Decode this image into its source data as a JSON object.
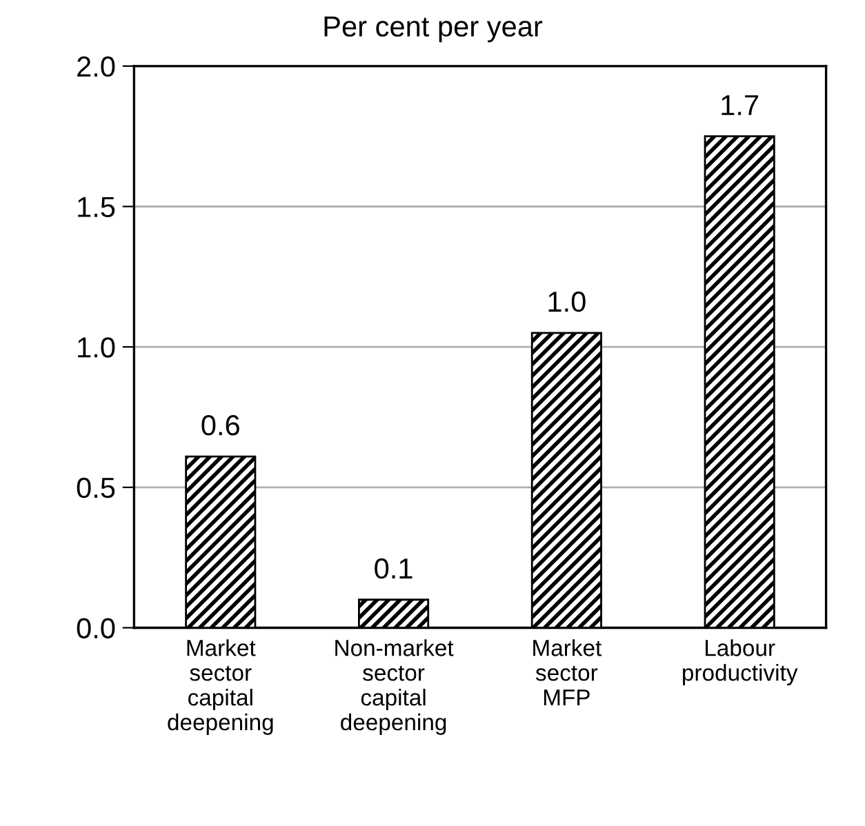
{
  "chart_data": {
    "type": "bar",
    "title": "Per cent per year",
    "categories": [
      "Market\nsector\ncapital\ndeepening",
      "Non-market\nsector\ncapital\ndeepening",
      "Market\nsector\nMFP",
      "Labour\nproductivity"
    ],
    "values": [
      0.61,
      0.1,
      1.05,
      1.75
    ],
    "value_labels": [
      "0.6",
      "0.1",
      "1.0",
      "1.7"
    ],
    "color": "#000000",
    "ylim": [
      0,
      2.0
    ],
    "yticks": [
      {
        "value": 0,
        "label": "0.0"
      },
      {
        "value": 0.5,
        "label": "0.5"
      },
      {
        "value": 1.0,
        "label": "1.0"
      },
      {
        "value": 1.5,
        "label": "1.5"
      },
      {
        "value": 2.0,
        "label": "2.0"
      }
    ],
    "grid": "y"
  }
}
